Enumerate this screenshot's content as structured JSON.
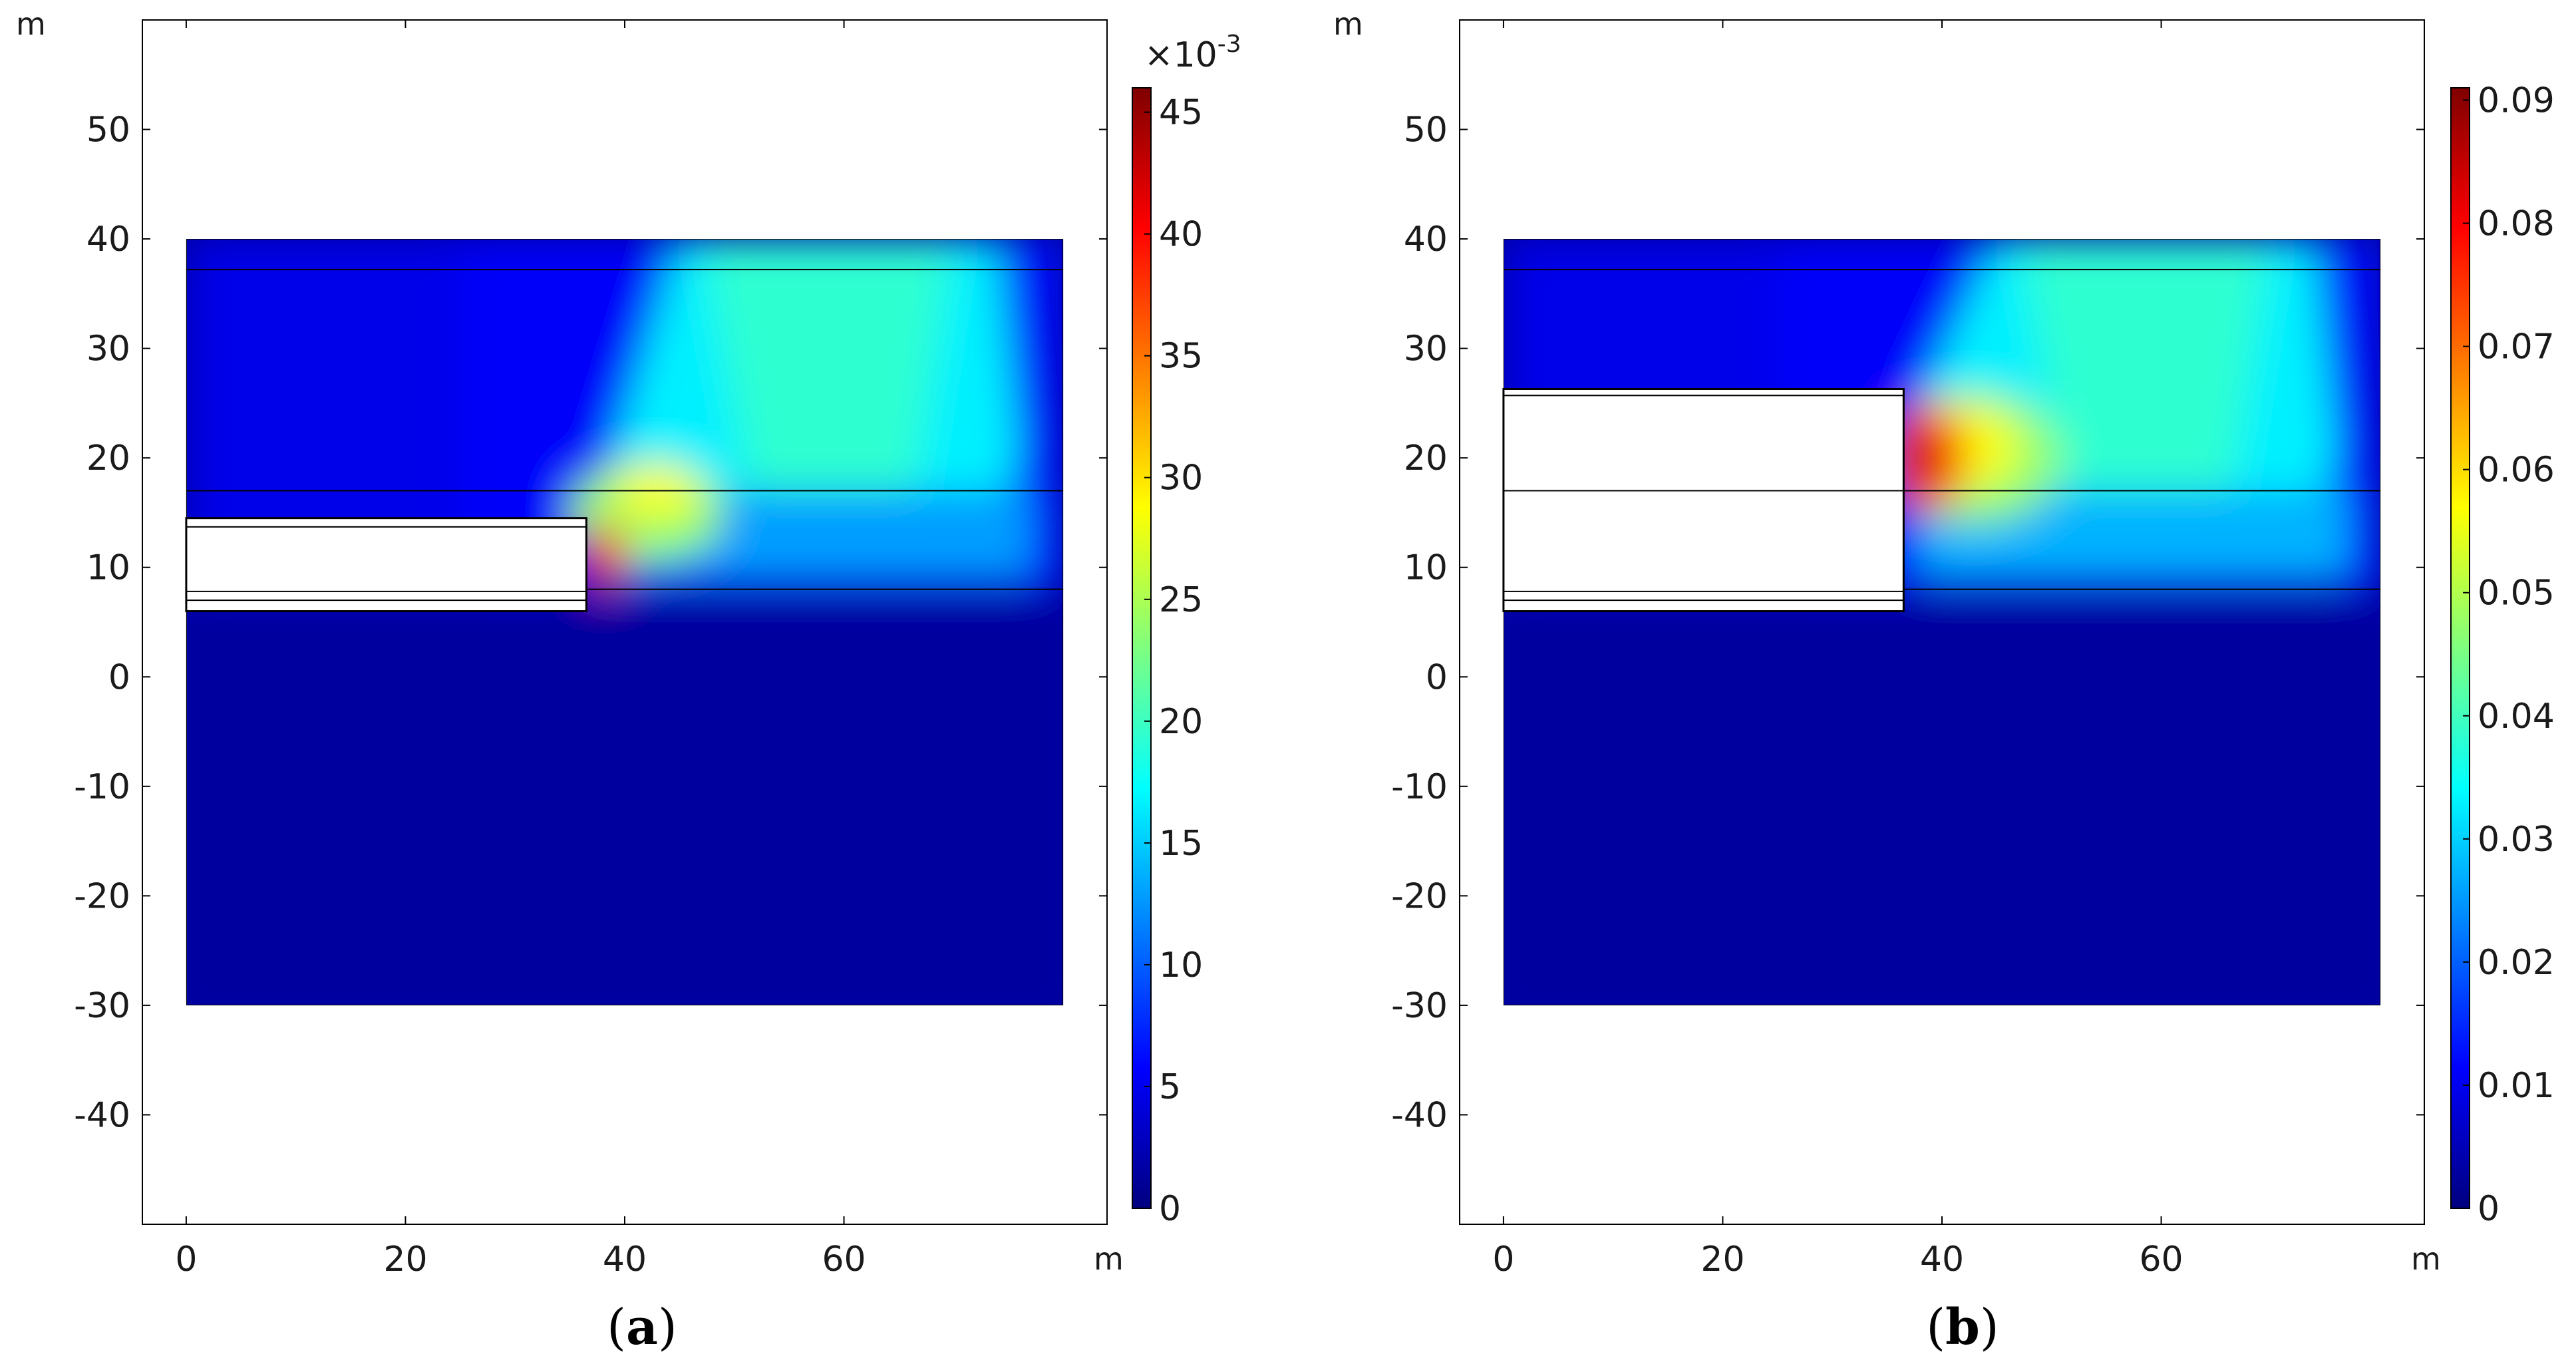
{
  "figure": {
    "panel_labels": [
      {
        "open": "(",
        "letter": "a",
        "close": ")"
      },
      {
        "open": "(",
        "letter": "b",
        "close": ")"
      }
    ]
  },
  "colormap": {
    "name": "jet",
    "stops": [
      "#00007f",
      "#0000ff",
      "#007fff",
      "#00ffff",
      "#7fff7f",
      "#ffff00",
      "#ff7f00",
      "#ff0000",
      "#7f0000"
    ]
  },
  "chart_data": [
    {
      "type": "heatmap",
      "panel": "a",
      "x_unit": "m",
      "y_unit": "m",
      "xlim": [
        -4,
        84
      ],
      "ylim": [
        -50,
        60
      ],
      "x_ticks": [
        0,
        20,
        40,
        60
      ],
      "y_ticks": [
        50,
        40,
        30,
        20,
        10,
        0,
        -10,
        -20,
        -30,
        -40
      ],
      "domain": {
        "x": [
          0,
          80
        ],
        "y": [
          -30,
          40
        ]
      },
      "layer_boundaries_y": [
        37.2,
        17,
        8
      ],
      "excavation": {
        "x": [
          0,
          36.5
        ],
        "y": [
          6,
          14.5
        ],
        "inner_lines_y": [
          7,
          7.8,
          13.7
        ]
      },
      "peak": {
        "x": 37,
        "y": 11,
        "value": 45
      },
      "colorbar": {
        "min": 0,
        "max": 46,
        "exponent_label": "×10",
        "exponent_power": "-3",
        "ticks": [
          0,
          5,
          10,
          15,
          20,
          25,
          30,
          35,
          40,
          45
        ],
        "tick_labels": [
          "0",
          "5",
          "10",
          "15",
          "20",
          "25",
          "30",
          "35",
          "40",
          "45"
        ]
      }
    },
    {
      "type": "heatmap",
      "panel": "b",
      "x_unit": "m",
      "y_unit": "m",
      "xlim": [
        -4,
        84
      ],
      "ylim": [
        -50,
        60
      ],
      "x_ticks": [
        0,
        20,
        40,
        60
      ],
      "y_ticks": [
        50,
        40,
        30,
        20,
        10,
        0,
        -10,
        -20,
        -30,
        -40
      ],
      "domain": {
        "x": [
          0,
          80
        ],
        "y": [
          -30,
          40
        ]
      },
      "layer_boundaries_y": [
        37.2,
        17,
        8
      ],
      "excavation": {
        "x": [
          0,
          36.5
        ],
        "y": [
          6,
          26.3
        ],
        "inner_lines_y": [
          7,
          7.8,
          17,
          25.7
        ]
      },
      "peak": {
        "x": 37.5,
        "y": 20,
        "value": 0.085
      },
      "colorbar": {
        "min": 0,
        "max": 0.091,
        "exponent_label": "",
        "exponent_power": "",
        "ticks": [
          0,
          0.01,
          0.02,
          0.03,
          0.04,
          0.05,
          0.06,
          0.07,
          0.08,
          0.09
        ],
        "tick_labels": [
          "0",
          "0.01",
          "0.02",
          "0.03",
          "0.04",
          "0.05",
          "0.06",
          "0.07",
          "0.08",
          "0.09"
        ]
      }
    }
  ]
}
